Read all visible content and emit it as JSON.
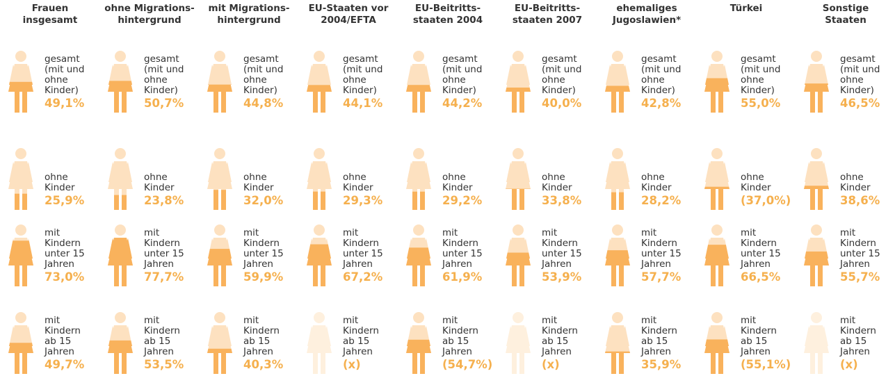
{
  "chart_data": {
    "type": "pictogram",
    "categories": [
      "Frauen\ninsgesamt",
      "ohne Migrations-\nhintergrund",
      "mit Migrations-\nhintergrund",
      "EU-Staaten vor\n2004/EFTA",
      "EU-Beitritts-\nstaaten 2004",
      "EU-Beitritts-\nstaaten 2007",
      "ehemaliges\nJugoslawien*",
      "Türkei",
      "Sonstige\nStaaten"
    ],
    "ylim": [
      0,
      100
    ],
    "fill_color": "#f9b25c",
    "base_color": "#fde1c0",
    "empty_color": "#fef0de",
    "series": [
      {
        "name": "gesamt (mit und ohne Kinder)",
        "values": [
          49.1,
          50.7,
          44.8,
          44.1,
          44.2,
          40.0,
          42.8,
          55.0,
          46.5
        ],
        "value_labels": [
          "49,1%",
          "50,7%",
          "44,8%",
          "44,1%",
          "44,2%",
          "40,0%",
          "42,8%",
          "55,0%",
          "46,5%"
        ]
      },
      {
        "name": "ohne Kinder",
        "values": [
          25.9,
          23.8,
          32.0,
          29.3,
          29.2,
          33.8,
          28.2,
          37.0,
          38.6
        ],
        "value_labels": [
          "25,9%",
          "23,8%",
          "32,0%",
          "29,3%",
          "29,2%",
          "33,8%",
          "28,2%",
          "(37,0%)",
          "38,6%"
        ]
      },
      {
        "name": "mit Kindern unter 15 Jahren",
        "values": [
          73.0,
          77.7,
          59.9,
          67.2,
          61.9,
          53.9,
          57.7,
          66.5,
          55.7
        ],
        "value_labels": [
          "73,0%",
          "77,7%",
          "59,9%",
          "67,2%",
          "61,9%",
          "53,9%",
          "57,7%",
          "66,5%",
          "55,7%"
        ]
      },
      {
        "name": "mit Kindern ab 15 Jahren",
        "values": [
          49.7,
          53.5,
          40.3,
          null,
          54.7,
          null,
          35.9,
          55.1,
          null
        ],
        "value_labels": [
          "49,7%",
          "53,5%",
          "40,3%",
          "(x)",
          "(54,7%)",
          "(x)",
          "35,9%",
          "(55,1%)",
          "(x)"
        ]
      }
    ]
  }
}
